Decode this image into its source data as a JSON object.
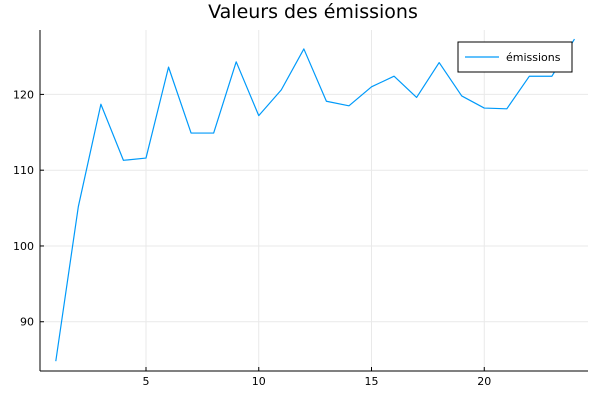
{
  "chart_data": {
    "type": "line",
    "title": "Valeurs des émissions",
    "xlabel": "",
    "ylabel": "",
    "xlim": [
      0.3,
      24.6
    ],
    "ylim": [
      83.5,
      128.5
    ],
    "x_ticks": [
      5,
      10,
      15,
      20
    ],
    "y_ticks": [
      90,
      100,
      110,
      120
    ],
    "grid": true,
    "legend_position": "top-right",
    "series": [
      {
        "name": "émissions",
        "color": "#009AFA",
        "x": [
          1,
          2,
          3,
          4,
          5,
          6,
          7,
          8,
          9,
          10,
          11,
          12,
          13,
          14,
          15,
          16,
          17,
          18,
          19,
          20,
          21,
          22,
          23,
          24
        ],
        "y": [
          84.8,
          105.2,
          118.7,
          111.3,
          111.6,
          123.6,
          114.9,
          114.9,
          124.3,
          117.2,
          120.6,
          126.0,
          119.1,
          118.5,
          121.0,
          122.4,
          119.6,
          124.2,
          119.8,
          118.2,
          118.1,
          122.4,
          122.4,
          127.3
        ]
      }
    ]
  }
}
